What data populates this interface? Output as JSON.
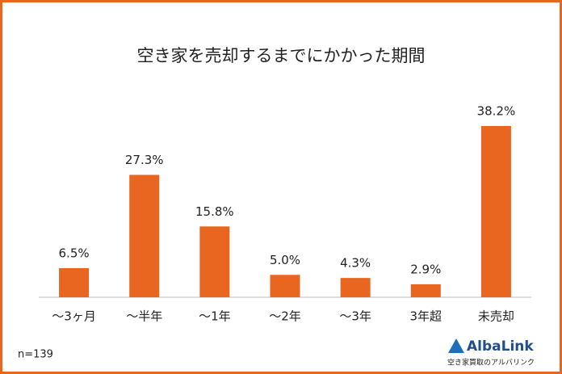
{
  "chart_data": {
    "type": "bar",
    "title": "空き家を売却するまでにかかった期間",
    "categories": [
      "～3ヶ月",
      "～半年",
      "～1年",
      "～2年",
      "～3年",
      "3年超",
      "未売却"
    ],
    "values": [
      6.5,
      27.3,
      15.8,
      5.0,
      4.3,
      2.9,
      38.2
    ],
    "value_labels": [
      "6.5%",
      "27.3%",
      "15.8%",
      "5.0%",
      "4.3%",
      "2.9%",
      "38.2%"
    ],
    "color": "#e8661f",
    "note": "n=139"
  },
  "logo": {
    "name": "AlbaLink",
    "tagline": "空き家買取のアルバリンク"
  }
}
